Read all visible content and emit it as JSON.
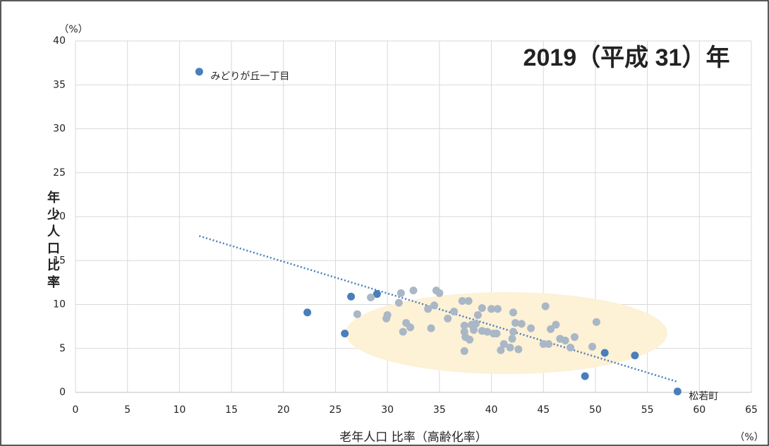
{
  "chart_data": {
    "type": "scatter",
    "title": "2019（平成 31）年",
    "x_label": "老年人口 比率（高齢化率）",
    "y_label": "年少人口比率",
    "x_unit": "（%）",
    "y_unit": "（%）",
    "xlim": [
      0,
      65
    ],
    "xticks": [
      0,
      5,
      10,
      15,
      20,
      25,
      30,
      35,
      40,
      45,
      50,
      55,
      60,
      65
    ],
    "ylim": [
      0,
      40
    ],
    "yticks": [
      0,
      5,
      10,
      15,
      20,
      25,
      30,
      35,
      40
    ],
    "grid": true,
    "series": [
      {
        "color": "#4a7ebb",
        "x": [
          11.9,
          22.3,
          26.5,
          25.9,
          29.0,
          49.0,
          50.9,
          53.8,
          57.9
        ],
        "y": [
          36.5,
          9.1,
          10.9,
          6.7,
          11.2,
          1.85,
          4.5,
          4.2,
          0.1
        ]
      },
      {
        "color": "#a9b7c6",
        "x": [
          27.1,
          28.4,
          29.9,
          30.0,
          31.1,
          31.3,
          31.5,
          31.8,
          32.2,
          32.5,
          33.9,
          34.2,
          34.5,
          34.7,
          35.0,
          35.8,
          36.4,
          37.2,
          37.4,
          37.4,
          37.4,
          37.5,
          37.8,
          37.9,
          38.1,
          38.3,
          38.5,
          38.7,
          39.1,
          39.1,
          39.6,
          40.0,
          40.2,
          40.5,
          40.6,
          40.9,
          41.2,
          41.8,
          42.0,
          42.1,
          42.1,
          42.3,
          42.6,
          42.9,
          43.8,
          45.0,
          45.2,
          45.5,
          45.7,
          46.2,
          46.6,
          47.1,
          47.6,
          48.0,
          49.7,
          50.1
        ],
        "y": [
          8.9,
          10.8,
          8.4,
          8.8,
          10.2,
          11.3,
          6.9,
          7.9,
          7.4,
          11.6,
          9.5,
          7.3,
          9.9,
          11.6,
          11.3,
          8.4,
          9.2,
          10.4,
          6.9,
          4.7,
          7.6,
          6.3,
          10.4,
          6.0,
          7.7,
          7.1,
          7.8,
          8.8,
          9.6,
          7.0,
          6.9,
          9.5,
          6.7,
          6.7,
          9.5,
          4.8,
          5.5,
          5.1,
          6.1,
          6.9,
          9.1,
          7.9,
          4.9,
          7.8,
          7.3,
          5.5,
          9.8,
          5.5,
          7.2,
          7.7,
          6.1,
          5.9,
          5.1,
          6.3,
          5.2,
          8.0
        ]
      }
    ],
    "trendline": {
      "color": "#4a7ebb",
      "x": [
        11.9,
        57.9
      ],
      "y": [
        17.8,
        1.2
      ]
    },
    "annotations": [
      "みどりが丘一丁目",
      "松若町"
    ]
  }
}
